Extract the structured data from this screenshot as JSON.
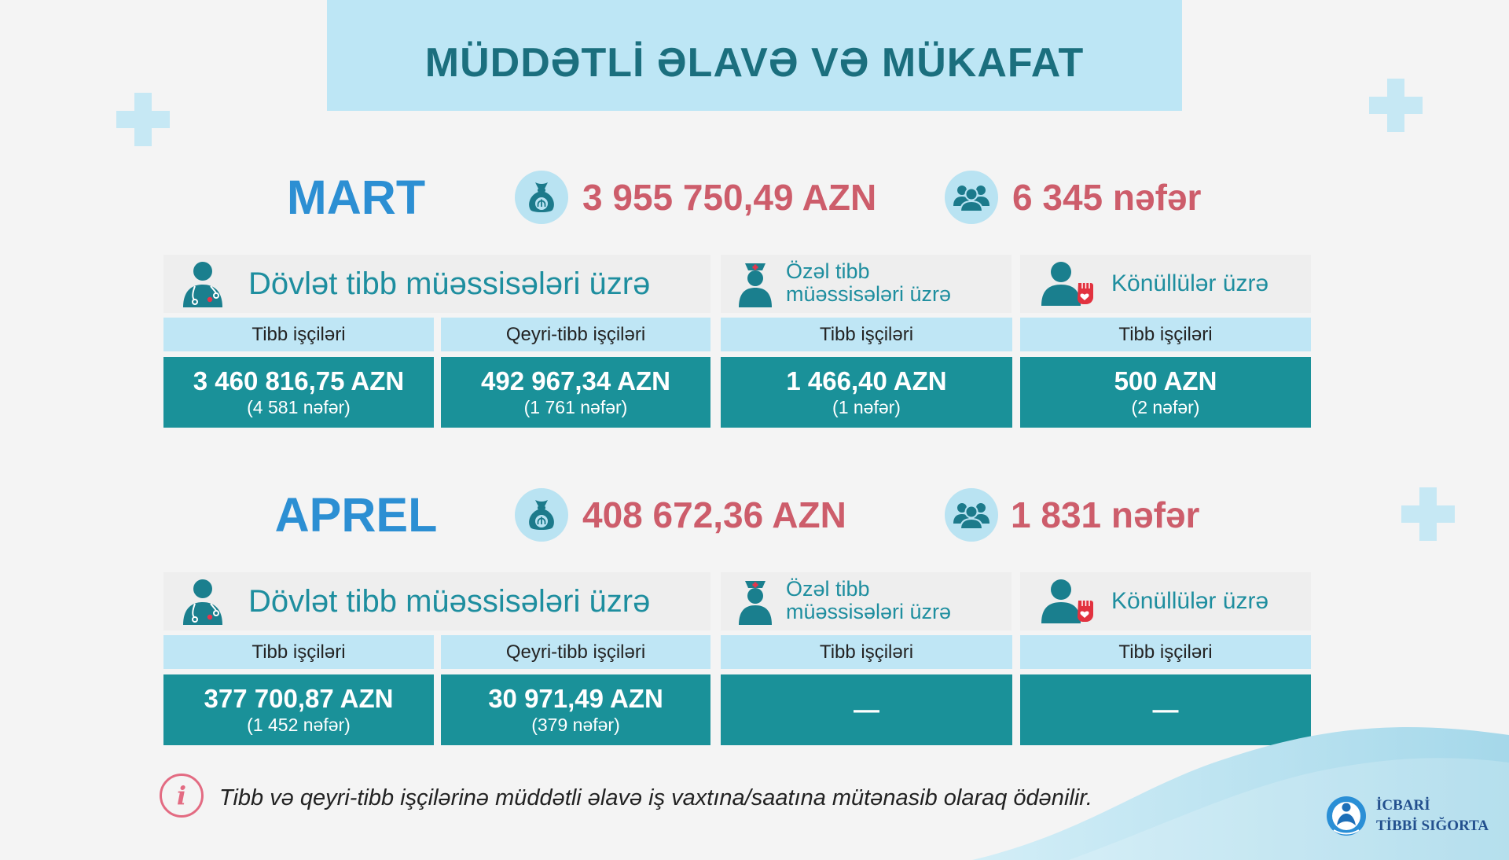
{
  "title": "MÜDDƏTLİ ƏLAVƏ VƏ MÜKAFAT",
  "months": [
    {
      "name": "MART",
      "total_amount": "3 955 750,49 AZN",
      "total_people": "6 345 nəfər",
      "state": {
        "title": "Dövlət tibb müəssisələri üzrə",
        "columns": [
          {
            "label": "Tibb işçiləri",
            "amount": "3 460 816,75 AZN",
            "people": "(4 581 nəfər)"
          },
          {
            "label": "Qeyri-tibb işçiləri",
            "amount": "492 967,34 AZN",
            "people": "(1 761 nəfər)"
          }
        ]
      },
      "private": {
        "title_line1": "Özəl tibb",
        "title_line2": "müəssisələri üzrə",
        "column": {
          "label": "Tibb işçiləri",
          "amount": "1 466,40 AZN",
          "people": "(1 nəfər)"
        }
      },
      "volunteers": {
        "title": "Könüllülər üzrə",
        "column": {
          "label": "Tibb işçiləri",
          "amount": "500 AZN",
          "people": "(2 nəfər)"
        }
      }
    },
    {
      "name": "APREL",
      "total_amount": "408 672,36 AZN",
      "total_people": "1 831 nəfər",
      "state": {
        "title": "Dövlət tibb müəssisələri üzrə",
        "columns": [
          {
            "label": "Tibb işçiləri",
            "amount": "377 700,87 AZN",
            "people": "(1 452 nəfər)"
          },
          {
            "label": "Qeyri-tibb işçiləri",
            "amount": "30 971,49 AZN",
            "people": "(379 nəfər)"
          }
        ]
      },
      "private": {
        "title_line1": "Özəl tibb",
        "title_line2": "müəssisələri üzrə",
        "column": {
          "label": "Tibb işçiləri",
          "amount": "—"
        }
      },
      "volunteers": {
        "title": "Könüllülər üzrə",
        "column": {
          "label": "Tibb işçiləri",
          "amount": "—"
        }
      }
    }
  ],
  "note": "Tibb və qeyri-tibb işçilərinə müddətli əlavə iş vaxtına/saatına mütənasib olaraq ödənilir.",
  "note_icon": "i",
  "logo": {
    "line1": "İCBARİ",
    "line2": "TİBBİ SIĞORTA"
  },
  "icons": [
    "money-bag-icon",
    "people-group-icon",
    "doctor-icon",
    "nurse-icon",
    "volunteer-icon",
    "info-icon",
    "plus-icon",
    "logo-icon"
  ],
  "colors": {
    "title_banner": "#bde6f5",
    "title_text": "#1b6f7e",
    "month_name": "#2c8fd3",
    "totals": "#cd5d6b",
    "header_text": "#1e8e9f",
    "value_box": "#1a9199",
    "subheader": "#bfe6f5",
    "info_accent": "#e36b82"
  }
}
